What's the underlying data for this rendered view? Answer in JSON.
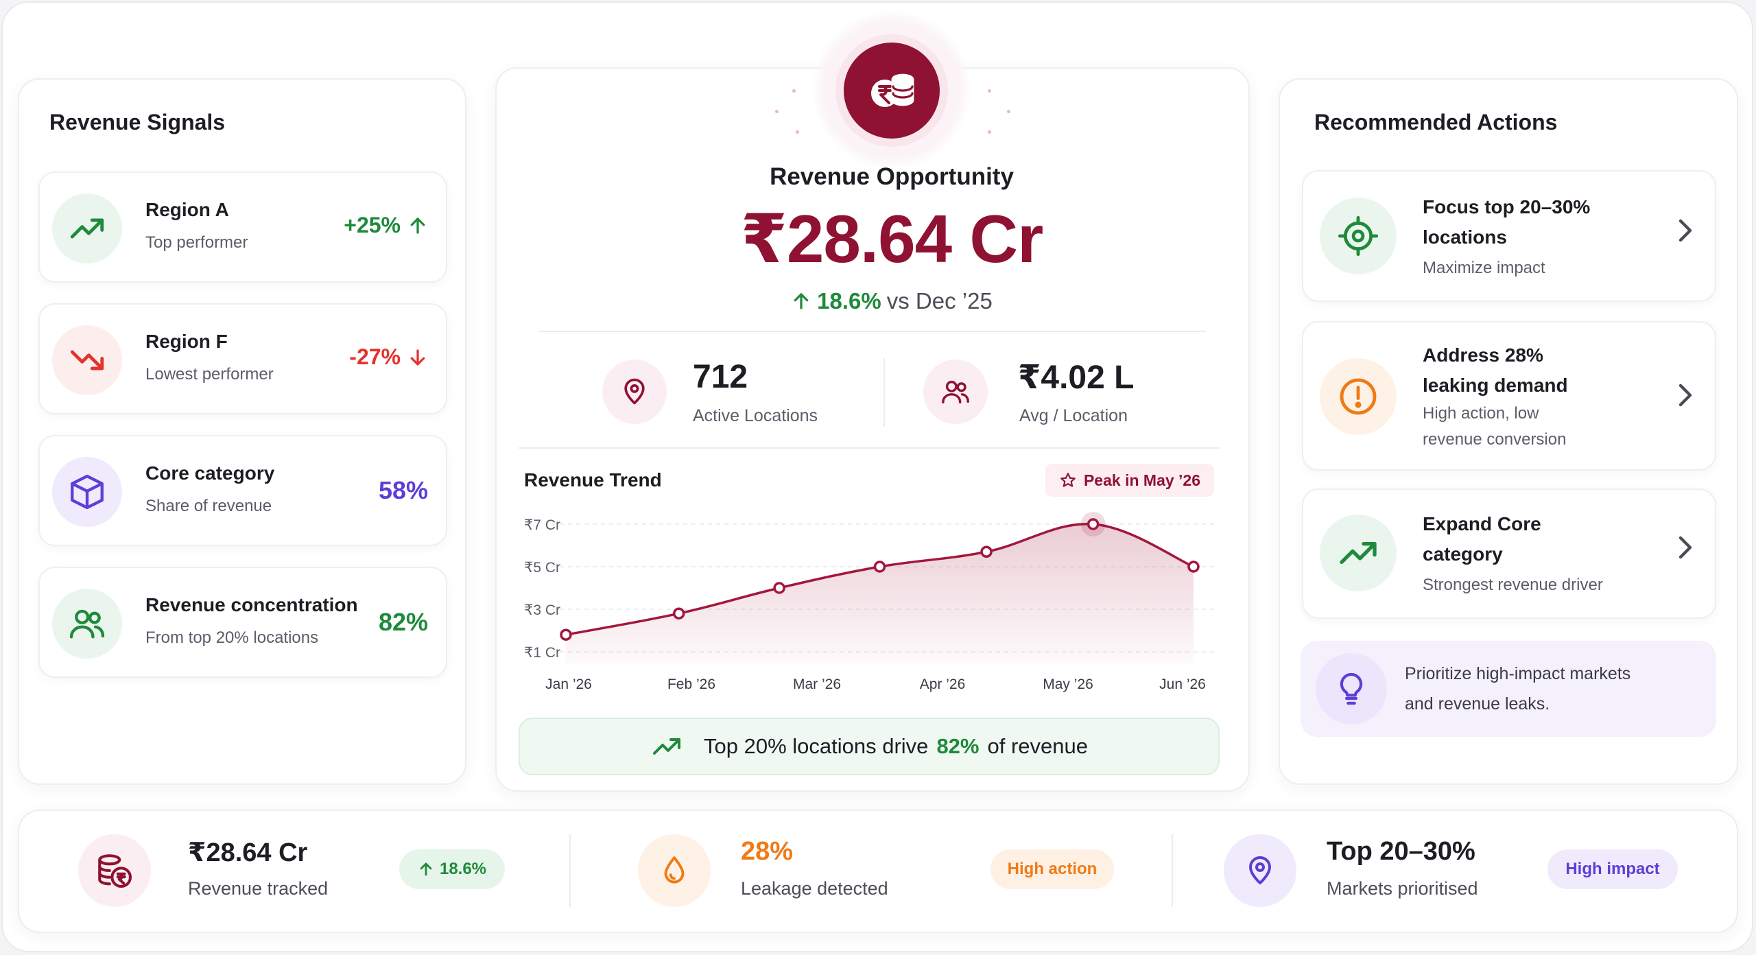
{
  "left": {
    "title": "Revenue Signals",
    "signals": [
      {
        "title": "Region A",
        "sub": "Top performer",
        "value": "+25%",
        "icon": "trend-up-icon",
        "color": "#1f8a3b"
      },
      {
        "title": "Region F",
        "sub": "Lowest performer",
        "value": "-27%",
        "icon": "trend-down-icon",
        "color": "#e5322d"
      },
      {
        "title": "Core category",
        "sub": "Share of revenue",
        "value": "58%",
        "icon": "cube-icon",
        "color": "#5b3fd6"
      },
      {
        "title": "Revenue concentration",
        "sub": "From top 20% locations",
        "value": "82%",
        "icon": "users-icon",
        "color": "#1f8a3b"
      }
    ]
  },
  "center": {
    "title": "Revenue Opportunity",
    "value": "₹28.64 Cr",
    "change_pct": "18.6%",
    "change_text": "vs Dec ’25",
    "kpis": [
      {
        "value": "712",
        "label": "Active Locations",
        "icon": "location-pin-icon"
      },
      {
        "value": "₹4.02 L",
        "label": "Avg / Location",
        "icon": "users-icon"
      }
    ],
    "trend_title": "Revenue Trend",
    "peak_badge": "Peak in May ’26",
    "insight": {
      "prefix": "Top 20% locations drive",
      "highlight": "82%",
      "suffix": "of revenue"
    }
  },
  "chart_data": {
    "type": "area",
    "title": "Revenue Trend",
    "x": [
      "Jan ’26",
      "Feb ’26",
      "Mar ’26",
      "Apr ’26",
      "May ’26",
      "Jun ’26"
    ],
    "points": [
      {
        "x": 0,
        "y": 1.8
      },
      {
        "x": 0.9,
        "y": 2.8
      },
      {
        "x": 1.7,
        "y": 4.0
      },
      {
        "x": 2.5,
        "y": 5.0
      },
      {
        "x": 3.35,
        "y": 5.7
      },
      {
        "x": 4.2,
        "y": 7.0
      },
      {
        "x": 5.0,
        "y": 5.0
      }
    ],
    "yticks": [
      "₹1 Cr",
      "₹3 Cr",
      "₹5 Cr",
      "₹7 Cr"
    ],
    "ytick_values": [
      1,
      3,
      5,
      7
    ],
    "ylim": [
      1,
      7
    ],
    "peak": "May ’26",
    "color": "#a3173d"
  },
  "right": {
    "title": "Recommended Actions",
    "actions": [
      {
        "title1": "Focus top 20–30%",
        "title2": "locations",
        "sub1": "Maximize impact",
        "sub2": "",
        "icon": "target-icon"
      },
      {
        "title1": "Address 28%",
        "title2": "leaking demand",
        "sub1": "High action, low",
        "sub2": "revenue conversion",
        "icon": "alert-icon"
      },
      {
        "title1": "Expand Core",
        "title2": "category",
        "sub1": "Strongest revenue driver",
        "sub2": "",
        "icon": "trend-up-icon"
      }
    ],
    "tip_line1": "Prioritize high-impact markets",
    "tip_line2": "and revenue leaks."
  },
  "bottom": [
    {
      "value": "₹28.64 Cr",
      "label": "Revenue tracked",
      "pill": "18.6%",
      "icon": "coins-icon"
    },
    {
      "value": "28%",
      "label": "Leakage detected",
      "pill": "High action",
      "icon": "drop-icon"
    },
    {
      "value": "Top 20–30%",
      "label": "Markets prioritised",
      "pill": "High impact",
      "icon": "location-pin-icon"
    }
  ]
}
